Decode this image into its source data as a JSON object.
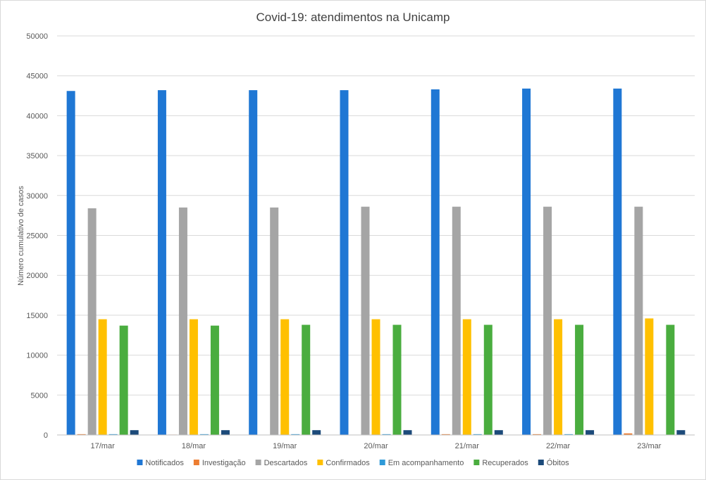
{
  "chart_data": {
    "type": "bar",
    "title": "Covid-19: atendimentos na Unicamp",
    "xlabel": "",
    "ylabel": "Número cumulativo de casos",
    "ylim": [
      0,
      50000
    ],
    "yticks": [
      0,
      5000,
      10000,
      15000,
      20000,
      25000,
      30000,
      35000,
      40000,
      45000,
      50000
    ],
    "grid": true,
    "legend_position": "bottom",
    "categories": [
      "17/mar",
      "18/mar",
      "19/mar",
      "20/mar",
      "21/mar",
      "22/mar",
      "23/mar"
    ],
    "series": [
      {
        "name": "Notificados",
        "color": "#1f77d4",
        "values": [
          43100,
          43200,
          43200,
          43200,
          43300,
          43400,
          43400
        ]
      },
      {
        "name": "Investigação",
        "color": "#ed7d31",
        "values": [
          100,
          50,
          30,
          30,
          100,
          100,
          200
        ]
      },
      {
        "name": "Descartados",
        "color": "#a5a5a5",
        "values": [
          28400,
          28500,
          28500,
          28600,
          28600,
          28600,
          28600
        ]
      },
      {
        "name": "Confirmados",
        "color": "#ffc000",
        "values": [
          14500,
          14500,
          14500,
          14500,
          14500,
          14500,
          14600
        ]
      },
      {
        "name": "Em acompanhamento",
        "color": "#2e9ad8",
        "values": [
          100,
          100,
          100,
          100,
          100,
          100,
          30
        ]
      },
      {
        "name": "Recuperados",
        "color": "#4aad3f",
        "values": [
          13700,
          13700,
          13800,
          13800,
          13800,
          13800,
          13800
        ]
      },
      {
        "name": "Óbitos",
        "color": "#1c4a7a",
        "values": [
          600,
          600,
          600,
          600,
          600,
          600,
          600
        ]
      }
    ]
  }
}
